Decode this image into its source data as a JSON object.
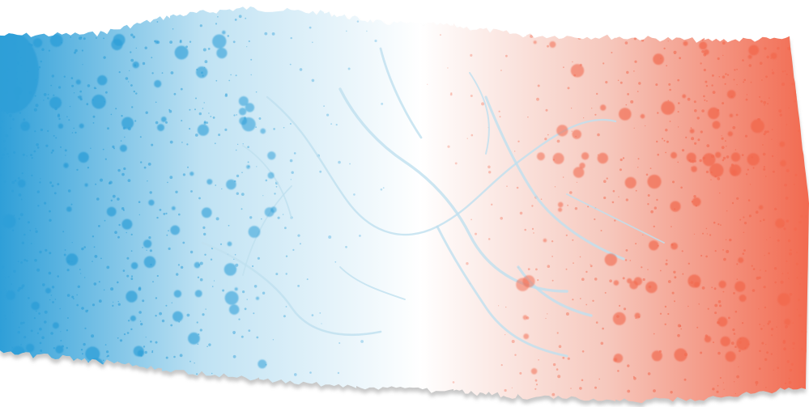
{
  "image": {
    "subject": "torn-paper-strip",
    "texture": "cracked-surface",
    "colors": {
      "blue": "#2f9fd8",
      "light_blue": "#bfe2f3",
      "white": "#ffffff",
      "light_red": "#f6c8bd",
      "red": "#f26a50",
      "crack": "#bfe0ef",
      "shadow": "#9a9a9a"
    }
  }
}
